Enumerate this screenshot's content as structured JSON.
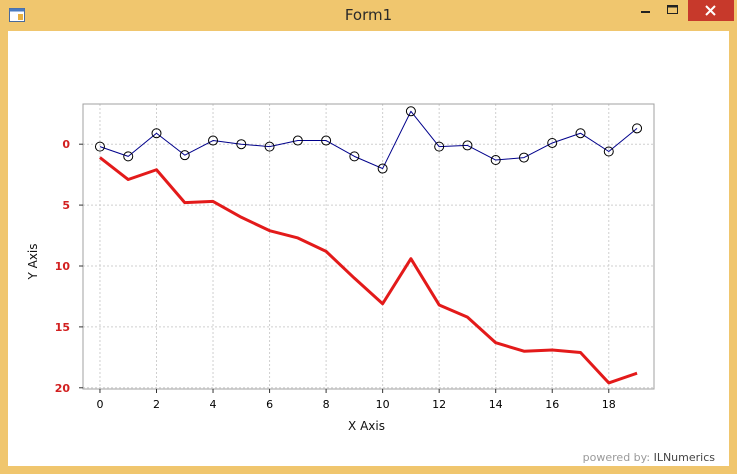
{
  "window": {
    "title": "Form1",
    "buttons": {
      "minimize": "minimize-icon",
      "maximize": "maximize-icon",
      "close": "close-icon"
    }
  },
  "footer": {
    "powered_by": "powered by:",
    "brand": "ILNumerics"
  },
  "chart_data": {
    "type": "line",
    "xlabel": "X Axis",
    "ylabel": "Y Axis",
    "xlim": [
      -0.6,
      19.6
    ],
    "ylim": [
      -3.3,
      20.1
    ],
    "y_inverted": true,
    "x_ticks": [
      0,
      2,
      4,
      6,
      8,
      10,
      12,
      14,
      16,
      18
    ],
    "y_ticks": [
      0,
      5,
      10,
      15,
      20
    ],
    "grid": true,
    "x": [
      0,
      1,
      2,
      3,
      4,
      5,
      6,
      7,
      8,
      9,
      10,
      11,
      12,
      13,
      14,
      15,
      16,
      17,
      18,
      19
    ],
    "series": [
      {
        "color": "#00008B",
        "marker": "circle",
        "values": [
          0.2,
          1.0,
          -0.9,
          0.9,
          -0.3,
          0.0,
          0.2,
          -0.3,
          -0.3,
          1.0,
          2.0,
          -2.7,
          0.2,
          0.1,
          1.3,
          1.1,
          -0.1,
          -0.9,
          0.6,
          -1.3
        ]
      },
      {
        "color": "#E31A1A",
        "marker": "none",
        "values": [
          1.1,
          2.9,
          2.1,
          4.8,
          4.7,
          6.0,
          7.1,
          7.7,
          8.8,
          11.0,
          13.1,
          9.4,
          13.2,
          14.2,
          16.3,
          17.0,
          16.9,
          17.1,
          19.6,
          18.8
        ]
      }
    ]
  }
}
